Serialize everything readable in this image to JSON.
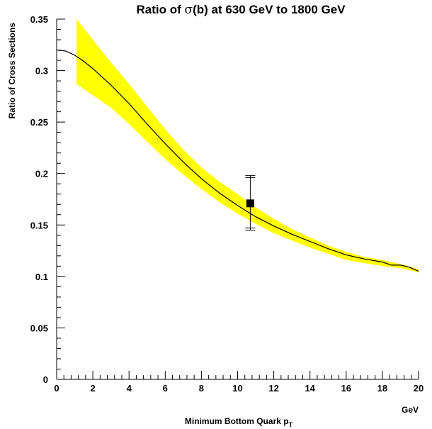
{
  "chart_data": {
    "type": "line",
    "title_parts": [
      "Ratio of ",
      "σ",
      "(b) at 630 GeV to 1800 GeV"
    ],
    "xlabel_main": "Minimum Bottom Quark p",
    "xlabel_sub": "T",
    "x_unit": "GeV",
    "ylabel": "Ratio of Cross Sections",
    "xlim": [
      0,
      20
    ],
    "ylim": [
      0,
      0.35
    ],
    "x_ticks": [
      0,
      2,
      4,
      6,
      8,
      10,
      12,
      14,
      16,
      18,
      20
    ],
    "x_tick_labels": [
      "0",
      "2",
      "4",
      "6",
      "8",
      "10",
      "12",
      "14",
      "16",
      "18",
      "20"
    ],
    "y_ticks": [
      0,
      0.05,
      0.1,
      0.15,
      0.2,
      0.25,
      0.3,
      0.35
    ],
    "y_tick_labels": [
      "0",
      "0.05",
      "0.1",
      "0.15",
      "0.2",
      "0.25",
      "0.3",
      "0.35"
    ],
    "grid": false,
    "band_color": "#ffff00",
    "line_color": "#000000",
    "series": [
      {
        "kind": "line",
        "x": [
          0,
          0.5,
          1,
          1.5,
          2,
          3,
          4,
          5,
          6,
          7,
          8,
          9,
          10,
          11,
          12,
          13,
          14,
          15,
          16,
          17,
          18,
          18.5,
          19,
          19.5,
          20
        ],
        "y": [
          0.32,
          0.319,
          0.315,
          0.309,
          0.302,
          0.286,
          0.268,
          0.248,
          0.229,
          0.211,
          0.195,
          0.181,
          0.169,
          0.158,
          0.149,
          0.141,
          0.134,
          0.127,
          0.121,
          0.117,
          0.114,
          0.111,
          0.111,
          0.109,
          0.105
        ]
      },
      {
        "kind": "band",
        "x": [
          1.1,
          2,
          3,
          4,
          5,
          6,
          7,
          8,
          9,
          10,
          11,
          12,
          13,
          14,
          15,
          16,
          17,
          18,
          19,
          20
        ],
        "y_upper": [
          0.35,
          0.33,
          0.308,
          0.287,
          0.265,
          0.243,
          0.223,
          0.206,
          0.192,
          0.18,
          0.167,
          0.156,
          0.146,
          0.138,
          0.13,
          0.124,
          0.119,
          0.116,
          0.112,
          0.107
        ],
        "y_lower": [
          0.287,
          0.276,
          0.264,
          0.248,
          0.231,
          0.214,
          0.199,
          0.185,
          0.172,
          0.161,
          0.151,
          0.142,
          0.135,
          0.128,
          0.122,
          0.116,
          0.113,
          0.11,
          0.108,
          0.104
        ]
      },
      {
        "kind": "point",
        "x": 10.7,
        "y": 0.171,
        "y_err_high": 0.198,
        "y_err_low": 0.145
      }
    ]
  }
}
